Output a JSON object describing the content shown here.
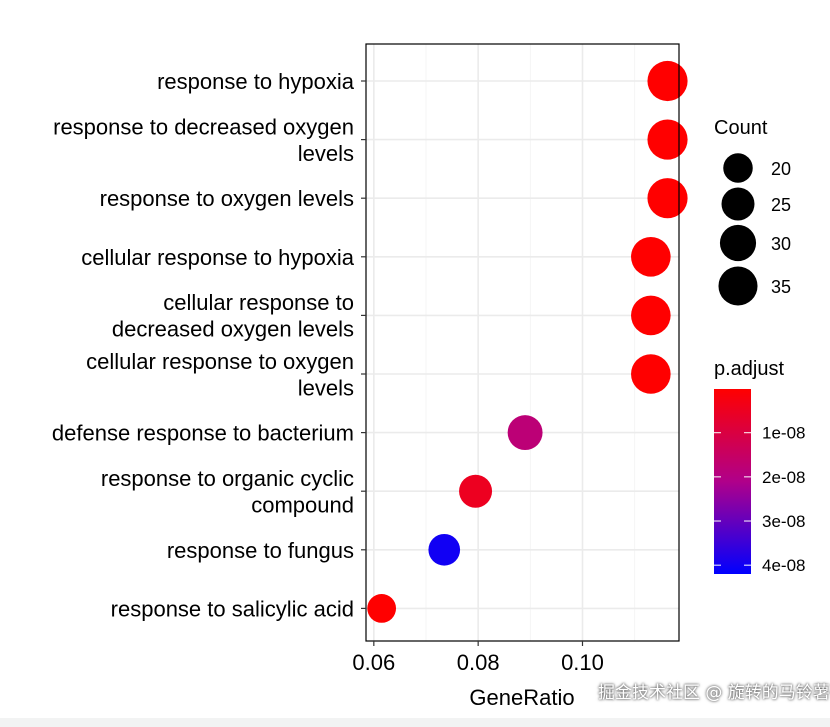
{
  "chart_data": {
    "type": "scatter",
    "title": "",
    "xlabel": "GeneRatio",
    "ylabel": "",
    "xlim": [
      0.0585,
      0.1185
    ],
    "xticks": [
      0.06,
      0.08,
      0.1
    ],
    "xtick_labels": [
      "0.06",
      "0.08",
      "0.10"
    ],
    "grid": true,
    "terms": [
      {
        "label_lines": [
          "response to hypoxia"
        ],
        "gene_ratio": 0.1163,
        "count": 37,
        "p_adjust": 1e-10
      },
      {
        "label_lines": [
          "response to decreased oxygen",
          "levels"
        ],
        "gene_ratio": 0.1163,
        "count": 37,
        "p_adjust": 1e-10
      },
      {
        "label_lines": [
          "response to oxygen levels"
        ],
        "gene_ratio": 0.1163,
        "count": 37,
        "p_adjust": 1e-10
      },
      {
        "label_lines": [
          "cellular response to hypoxia"
        ],
        "gene_ratio": 0.1131,
        "count": 36,
        "p_adjust": 1e-10
      },
      {
        "label_lines": [
          "cellular response to",
          "decreased oxygen levels"
        ],
        "gene_ratio": 0.1131,
        "count": 36,
        "p_adjust": 1e-10
      },
      {
        "label_lines": [
          "cellular response to oxygen",
          "levels"
        ],
        "gene_ratio": 0.1131,
        "count": 36,
        "p_adjust": 1e-10
      },
      {
        "label_lines": [
          "defense response to bacterium"
        ],
        "gene_ratio": 0.089,
        "count": 28,
        "p_adjust": 1.8e-08
      },
      {
        "label_lines": [
          "response to organic cyclic",
          "compound"
        ],
        "gene_ratio": 0.0795,
        "count": 25,
        "p_adjust": 5e-09
      },
      {
        "label_lines": [
          "response to fungus"
        ],
        "gene_ratio": 0.0735,
        "count": 23,
        "p_adjust": 4e-08
      },
      {
        "label_lines": [
          "response to salicylic acid"
        ],
        "gene_ratio": 0.0615,
        "count": 19,
        "p_adjust": 1e-10
      }
    ],
    "legend_count": {
      "title": "Count",
      "entries": [
        {
          "label": "20",
          "value": 20
        },
        {
          "label": "25",
          "value": 25
        },
        {
          "label": "30",
          "value": 30
        },
        {
          "label": "35",
          "value": 35
        }
      ]
    },
    "legend_padjust": {
      "title": "p.adjust",
      "range": [
        1e-10,
        4.2e-08
      ],
      "ticks": [
        {
          "label": "1e-08",
          "value": 1e-08
        },
        {
          "label": "2e-08",
          "value": 2e-08
        },
        {
          "label": "3e-08",
          "value": 3e-08
        },
        {
          "label": "4e-08",
          "value": 4e-08
        }
      ],
      "color_low": "#ff0000",
      "color_high": "#0000ff"
    },
    "colors": {
      "panel_border": "#000000",
      "grid_major": "#ebebeb",
      "grid_minor": "#f5f5f5",
      "text": "#000000",
      "legend_dot": "#000000"
    }
  },
  "watermark": "掘金技术社区 @ 旋转的马铃薯子"
}
